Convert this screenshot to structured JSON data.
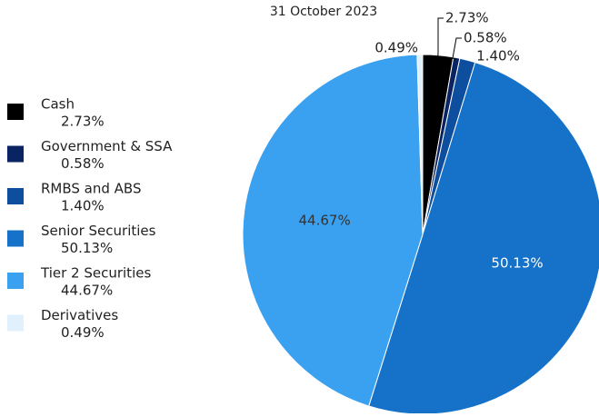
{
  "chart_data": {
    "type": "pie",
    "subtitle": "31 October 2023",
    "categories": [
      "Cash",
      "Government & SSA",
      "RMBS and ABS",
      "Senior Securities",
      "Tier 2 Securities",
      "Derivatives"
    ],
    "values": [
      2.73,
      0.58,
      1.4,
      50.13,
      44.67,
      0.49
    ],
    "value_labels": [
      "2.73%",
      "0.58%",
      "1.40%",
      "50.13%",
      "44.67%",
      "0.49%"
    ],
    "colors": [
      "#000000",
      "#0a2463",
      "#0d4f9e",
      "#1672c9",
      "#3aa0f0",
      "#e0f0fc"
    ]
  }
}
